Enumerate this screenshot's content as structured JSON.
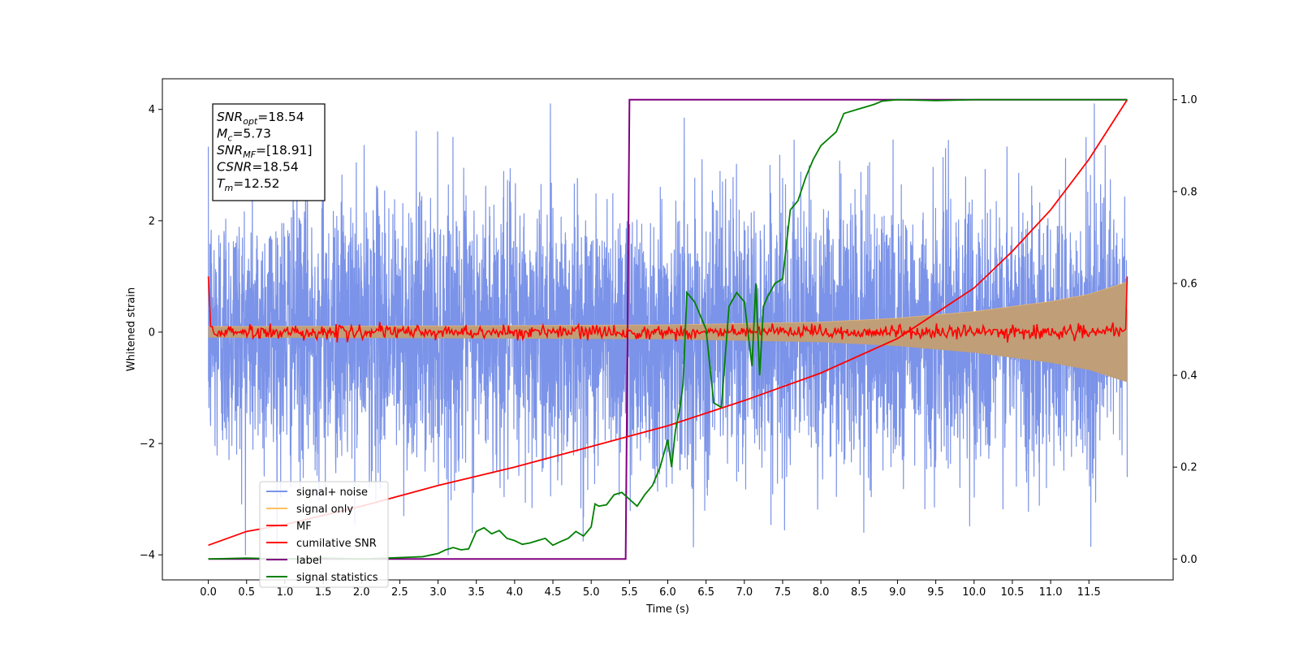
{
  "chart_data": {
    "type": "line",
    "xlabel": "Time (s)",
    "ylabel_left": "Whitened strain",
    "ylabel_right": "",
    "xlim": [
      -0.6,
      12.6
    ],
    "ylim_left": [
      -4.45,
      4.55
    ],
    "ylim_right": [
      -0.0455,
      1.0455
    ],
    "x_ticks": [
      "0.0",
      "0.5",
      "1.0",
      "1.5",
      "2.0",
      "2.5",
      "3.0",
      "3.5",
      "4.0",
      "4.5",
      "5.0",
      "5.5",
      "6.0",
      "6.5",
      "7.0",
      "7.5",
      "8.0",
      "8.5",
      "9.0",
      "9.5",
      "10.0",
      "10.5",
      "11.0",
      "11.5"
    ],
    "y_ticks_left": [
      "4",
      "2",
      "0",
      "−2",
      "−4"
    ],
    "y_ticks_left_values": [
      4,
      2,
      0,
      -2,
      -4
    ],
    "y_ticks_right": [
      "1.0",
      "0.8",
      "0.6",
      "0.4",
      "0.2",
      "0.0"
    ],
    "y_ticks_right_values": [
      1.0,
      0.8,
      0.6,
      0.4,
      0.2,
      0.0
    ],
    "grid": false,
    "legend_position": "lower-left",
    "annotation": {
      "lines": [
        {
          "base": "SNR",
          "sub": "opt",
          "value": "=18.54"
        },
        {
          "base": "M",
          "sub": "c",
          "value": "=5.73"
        },
        {
          "base": "SNR",
          "sub": "MF",
          "value": "=[18.91]"
        },
        {
          "base": "CSNR",
          "sub": "",
          "value": "=18.54"
        },
        {
          "base": "T",
          "sub": "m",
          "value": "=12.52"
        }
      ]
    },
    "series": [
      {
        "name": "signal+ noise",
        "axis": "left",
        "color": "#7b93e8",
        "style": "noise",
        "x_range": [
          0.0,
          12.0
        ],
        "typical_amplitude": 1.2,
        "max_value": 4.1,
        "min_value": -4.0
      },
      {
        "name": "signal only",
        "axis": "left",
        "color": "#ffc060",
        "fill_color": "#bf9e78",
        "style": "chirp-envelope",
        "envelope": {
          "x": [
            0,
            3,
            6,
            8,
            9,
            10,
            11,
            11.5,
            12.0
          ],
          "amp": [
            0.1,
            0.11,
            0.13,
            0.18,
            0.25,
            0.37,
            0.55,
            0.68,
            0.9
          ]
        }
      },
      {
        "name": "MF",
        "axis": "left",
        "color": "#ff0000",
        "style": "noise-small",
        "x_range": [
          0.0,
          12.0
        ],
        "start_value": 1.0,
        "end_value": 1.0,
        "typical_amplitude": 0.06
      },
      {
        "name": "cumilative SNR",
        "axis": "right",
        "color": "#ff0000",
        "x": [
          0.0,
          0.5,
          1.0,
          2.0,
          3.0,
          4.0,
          5.0,
          6.0,
          7.0,
          8.0,
          9.0,
          10.0,
          10.5,
          11.0,
          11.5,
          12.0
        ],
        "y": [
          0.03,
          0.06,
          0.075,
          0.115,
          0.16,
          0.2,
          0.245,
          0.29,
          0.345,
          0.405,
          0.48,
          0.59,
          0.67,
          0.76,
          0.87,
          1.0
        ]
      },
      {
        "name": "label",
        "axis": "right",
        "color": "#800080",
        "x": [
          0.0,
          5.45,
          5.5,
          12.0
        ],
        "y": [
          0.0,
          0.0,
          1.0,
          1.0
        ]
      },
      {
        "name": "signal statistics",
        "axis": "right",
        "color": "#008000",
        "x": [
          0.0,
          0.5,
          1.0,
          1.5,
          2.0,
          2.5,
          2.8,
          3.0,
          3.1,
          3.2,
          3.3,
          3.4,
          3.5,
          3.6,
          3.7,
          3.8,
          3.9,
          4.0,
          4.1,
          4.2,
          4.3,
          4.4,
          4.5,
          4.6,
          4.7,
          4.8,
          4.9,
          5.0,
          5.05,
          5.1,
          5.2,
          5.3,
          5.4,
          5.5,
          5.6,
          5.7,
          5.8,
          5.9,
          6.0,
          6.05,
          6.1,
          6.15,
          6.2,
          6.25,
          6.35,
          6.5,
          6.6,
          6.7,
          6.8,
          6.9,
          7.0,
          7.1,
          7.15,
          7.2,
          7.25,
          7.3,
          7.4,
          7.5,
          7.6,
          7.7,
          7.8,
          7.9,
          8.0,
          8.2,
          8.3,
          8.5,
          8.6,
          8.7,
          8.8,
          9.0,
          9.5,
          10.0,
          10.5,
          11.0,
          11.5,
          12.0
        ],
        "y": [
          0.0,
          0.002,
          0.0,
          0.002,
          0.0,
          0.003,
          0.005,
          0.012,
          0.02,
          0.025,
          0.02,
          0.022,
          0.06,
          0.068,
          0.055,
          0.062,
          0.045,
          0.04,
          0.032,
          0.035,
          0.04,
          0.045,
          0.03,
          0.038,
          0.045,
          0.06,
          0.05,
          0.07,
          0.12,
          0.115,
          0.118,
          0.14,
          0.145,
          0.13,
          0.115,
          0.14,
          0.16,
          0.2,
          0.26,
          0.2,
          0.28,
          0.32,
          0.38,
          0.58,
          0.56,
          0.5,
          0.34,
          0.33,
          0.55,
          0.58,
          0.56,
          0.42,
          0.6,
          0.4,
          0.55,
          0.57,
          0.6,
          0.61,
          0.76,
          0.78,
          0.83,
          0.87,
          0.9,
          0.93,
          0.97,
          0.98,
          0.985,
          0.99,
          0.997,
          1.0,
          0.998,
          1.0,
          1.0,
          1.0,
          1.0,
          1.0
        ]
      }
    ]
  }
}
